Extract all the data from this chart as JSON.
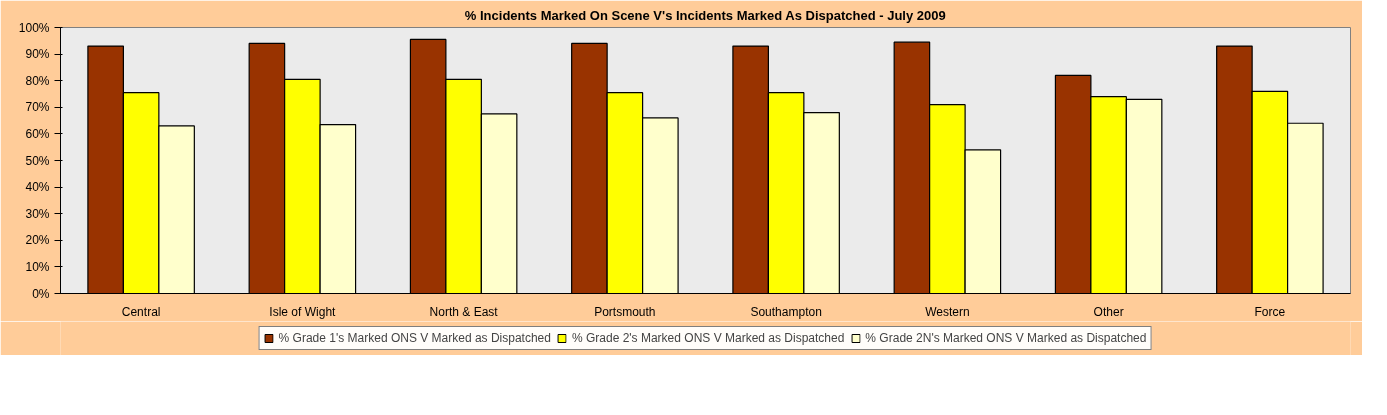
{
  "chart_data": {
    "type": "bar",
    "title": "% Incidents Marked On Scene V's Incidents Marked As Dispatched - July 2009",
    "categories": [
      "Central",
      "Isle of Wight",
      "North & East",
      "Portsmouth",
      "Southampton",
      "Western",
      "Other",
      "Force"
    ],
    "series": [
      {
        "name": "% Grade 1's Marked ONS V Marked as Dispatched",
        "color": "#993300",
        "values": [
          93,
          94,
          95.5,
          94,
          93,
          94.5,
          82,
          93
        ]
      },
      {
        "name": "% Grade 2's Marked ONS V Marked as Dispatched",
        "color": "#ffff00",
        "values": [
          75.5,
          80.5,
          80.5,
          75.5,
          75.5,
          71,
          74,
          76
        ]
      },
      {
        "name": "% Grade 2N's Marked ONS V Marked as Dispatched",
        "color": "#ffffcc",
        "values": [
          63,
          63.5,
          67.5,
          66,
          68,
          54,
          73,
          64
        ]
      }
    ],
    "ylim": [
      0,
      100
    ],
    "yticks": [
      {
        "value": 0,
        "label": "0%"
      },
      {
        "value": 10,
        "label": "10%"
      },
      {
        "value": 20,
        "label": "20%"
      },
      {
        "value": 30,
        "label": "30%"
      },
      {
        "value": 40,
        "label": "40%"
      },
      {
        "value": 50,
        "label": "50%"
      },
      {
        "value": 60,
        "label": "60%"
      },
      {
        "value": 70,
        "label": "70%"
      },
      {
        "value": 80,
        "label": "80%"
      },
      {
        "value": 90,
        "label": "90%"
      },
      {
        "value": 100,
        "label": "100%"
      }
    ],
    "grid": false,
    "legend": "bottom"
  }
}
